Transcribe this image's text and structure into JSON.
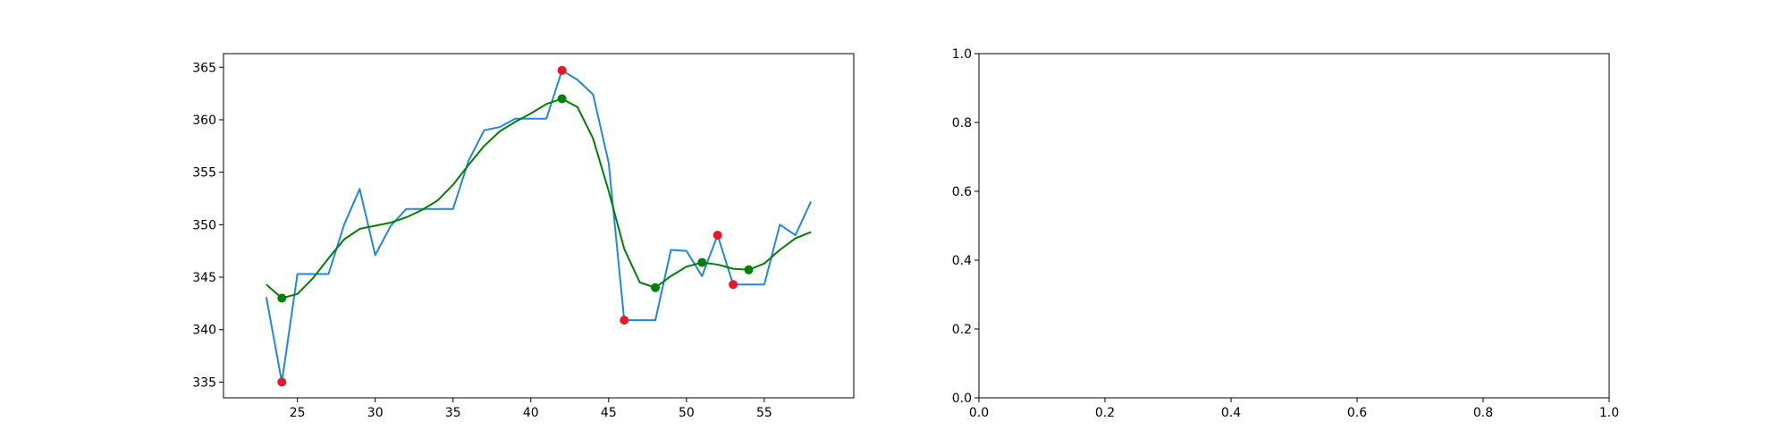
{
  "chart_data": [
    {
      "type": "line",
      "title": "",
      "xlabel": "",
      "ylabel": "",
      "xlim": [
        20.25,
        60.75
      ],
      "ylim": [
        333.5,
        366.3
      ],
      "xticks": [
        25,
        30,
        35,
        40,
        45,
        50,
        55
      ],
      "yticks": [
        335,
        340,
        345,
        350,
        355,
        360,
        365
      ],
      "grid": false,
      "legend": "none",
      "series": [
        {
          "color": "#1e88e5",
          "marker": "none",
          "x": [
            23,
            24,
            25,
            26,
            27,
            28,
            29,
            30,
            31,
            32,
            33,
            34,
            35,
            36,
            37,
            38,
            39,
            40,
            41,
            42,
            43,
            44,
            45,
            46,
            47,
            48,
            49,
            50,
            51,
            52,
            53,
            54,
            55,
            56,
            57,
            58
          ],
          "y": [
            343.1,
            335.0,
            345.3,
            345.3,
            345.3,
            350.0,
            353.4,
            347.1,
            349.9,
            351.5,
            351.5,
            351.5,
            351.5,
            356.1,
            359.0,
            359.3,
            360.1,
            360.1,
            360.1,
            364.7,
            363.8,
            362.4,
            355.9,
            340.9,
            340.9,
            340.9,
            347.6,
            347.5,
            345.1,
            349.0,
            344.3,
            344.3,
            344.3,
            350.0,
            349.0,
            352.2
          ]
        },
        {
          "color": "#008000",
          "marker": "none",
          "x": [
            23,
            24,
            25,
            26,
            27,
            28,
            29,
            30,
            31,
            32,
            33,
            34,
            35,
            36,
            37,
            38,
            39,
            40,
            41,
            42,
            43,
            44,
            45,
            46,
            47,
            48,
            49,
            50,
            51,
            52,
            53,
            54,
            55,
            56,
            57,
            58
          ],
          "y": [
            344.3,
            343.0,
            343.4,
            344.9,
            346.8,
            348.6,
            349.6,
            349.9,
            350.2,
            350.7,
            351.4,
            352.3,
            353.8,
            355.7,
            357.5,
            358.9,
            359.8,
            360.6,
            361.5,
            362.0,
            361.2,
            358.2,
            353.2,
            347.7,
            344.5,
            344.0,
            345.1,
            346.0,
            346.4,
            346.2,
            345.8,
            345.7,
            346.3,
            347.6,
            348.7,
            349.3
          ]
        },
        {
          "color": "#e8182a",
          "marker": "circle",
          "line": false,
          "x": [
            24,
            42,
            46,
            52,
            53
          ],
          "y": [
            335.0,
            364.7,
            340.9,
            349.0,
            344.3
          ]
        },
        {
          "color": "#008000",
          "marker": "circle",
          "line": false,
          "x": [
            24,
            42,
            48,
            51,
            54
          ],
          "y": [
            343.0,
            362.0,
            344.0,
            346.4,
            345.7
          ]
        }
      ]
    },
    {
      "type": "line",
      "title": "",
      "xlabel": "",
      "ylabel": "",
      "xlim": [
        0.0,
        1.0
      ],
      "ylim": [
        0.0,
        1.0
      ],
      "xticks": [
        0.0,
        0.2,
        0.4,
        0.6,
        0.8,
        1.0
      ],
      "yticks": [
        0.0,
        0.2,
        0.4,
        0.6,
        0.8,
        1.0
      ],
      "grid": false,
      "legend": "none",
      "series": []
    }
  ]
}
